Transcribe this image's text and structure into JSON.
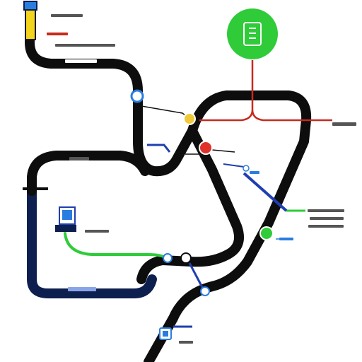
{
  "diagram": {
    "colors": {
      "background": "#ffffff",
      "main_track": "#0d0d0d",
      "navy_track": "#0d1f4e",
      "green_line": "#2ecc3a",
      "red_line": "#c72a1e",
      "blue_line": "#1f3fb0",
      "station_green": "#2fcb39",
      "station_red": "#e0302a",
      "station_yellow": "#f0c93a",
      "station_blue": "#2a7de0",
      "terminal_yellow": "#f2d41c"
    },
    "icons": {
      "terminal_top_left": "station-pole-icon",
      "top_right_circle": "document-icon",
      "left_panel": "monitor-icon",
      "bottom_station": "ticket-icon"
    }
  }
}
